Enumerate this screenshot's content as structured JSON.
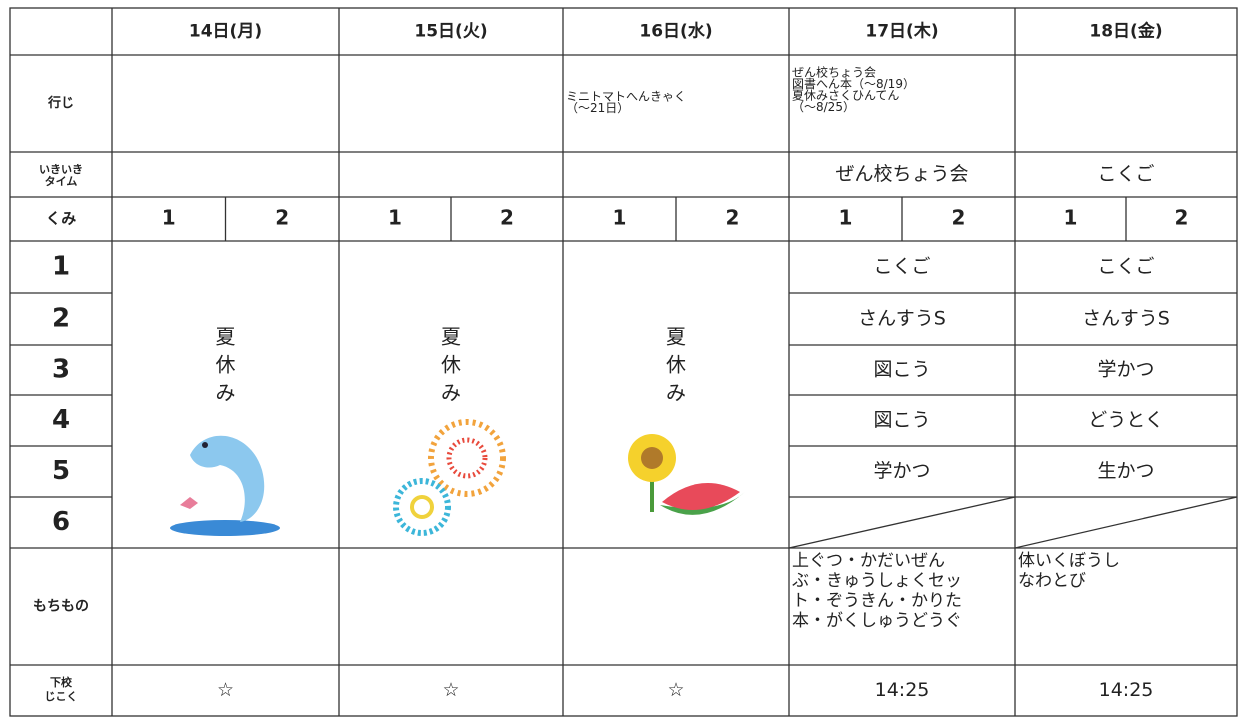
{
  "row_headers": {
    "events": "行じ",
    "ikiiki": [
      "いきいき",
      "タイム"
    ],
    "classes": "くみ",
    "periods": [
      "1",
      "2",
      "3",
      "4",
      "5",
      "6"
    ],
    "belongings": "もちもの",
    "return_time": [
      "下校",
      "じこく"
    ]
  },
  "days": [
    {
      "date": "14日(月)",
      "class_numbers": [
        1,
        2
      ],
      "summer_break": [
        "夏",
        "休",
        "み"
      ],
      "return_time": "☆"
    },
    {
      "date": "15日(火)",
      "class_numbers": [
        1,
        2
      ],
      "summer_break": [
        "夏",
        "休",
        "み"
      ],
      "return_time": "☆"
    },
    {
      "date": "16日(水)",
      "events": [
        "ミニトマトへんきゃく",
        "（～21日）"
      ],
      "class_numbers": [
        1,
        2
      ],
      "summer_break": [
        "夏",
        "休",
        "み"
      ],
      "return_time": "☆"
    },
    {
      "date": "17日(木)",
      "events": [
        "ぜん校ちょう会",
        "図書へん本（～8/19）",
        "夏休みさくひんてん",
        "（～8/25）"
      ],
      "ikiiki": "ぜん校ちょう会",
      "class_numbers": [
        1,
        2
      ],
      "periods": [
        "こくご",
        "さんすうS",
        "図こう",
        "図こう",
        "学かつ"
      ],
      "belongings": [
        "上ぐつ・かだいぜん",
        "ぶ・きゅうしょくセッ",
        "ト・ぞうきん・かりた",
        "本・がくしゅうどうぐ"
      ],
      "return_time": "14:25"
    },
    {
      "date": "18日(金)",
      "ikiiki": "こくご",
      "class_numbers": [
        1,
        2
      ],
      "periods": [
        "こくご",
        "さんすうS",
        "学かつ",
        "どうとく",
        "生かつ"
      ],
      "belongings": [
        "体いくぼうし",
        "なわとび"
      ],
      "return_time": "14:25"
    }
  ]
}
